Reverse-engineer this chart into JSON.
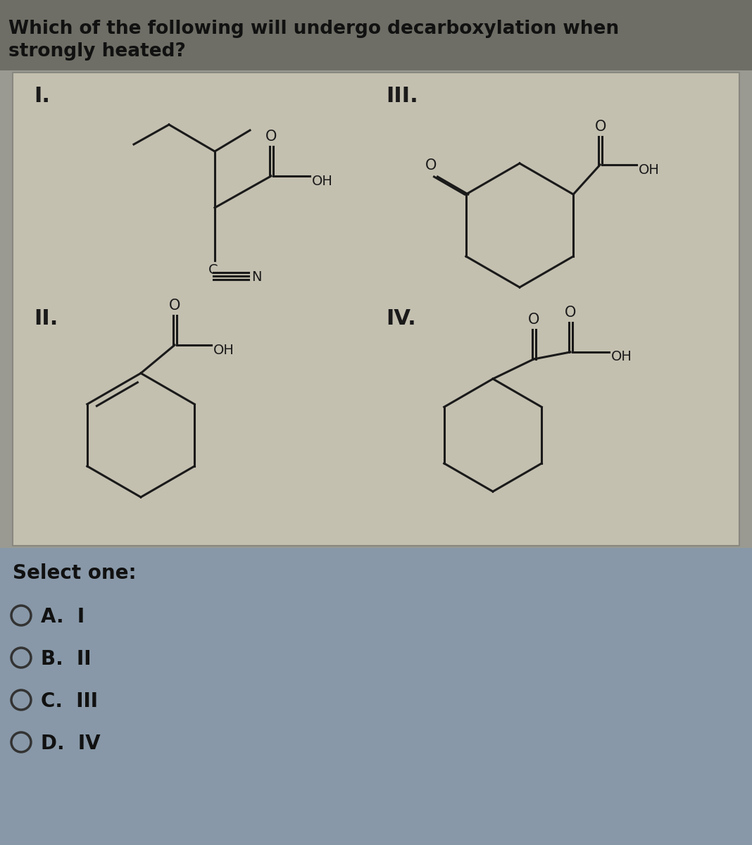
{
  "title_line1": "Which of the following will undergo decarboxylation when",
  "title_line2": "strongly heated?",
  "select_text": "Select one:",
  "options": [
    "A.  I",
    "B.  II",
    "C.  III",
    "D.  IV"
  ],
  "bg_header": "#7a7a72",
  "bg_panel": "#c8c5b5",
  "bg_bottom": "#8898a8",
  "bg_overall": "#9a9a92",
  "text_color": "#1a1a1a",
  "title_fontsize": 19,
  "option_fontsize": 20,
  "lw": 2.2
}
